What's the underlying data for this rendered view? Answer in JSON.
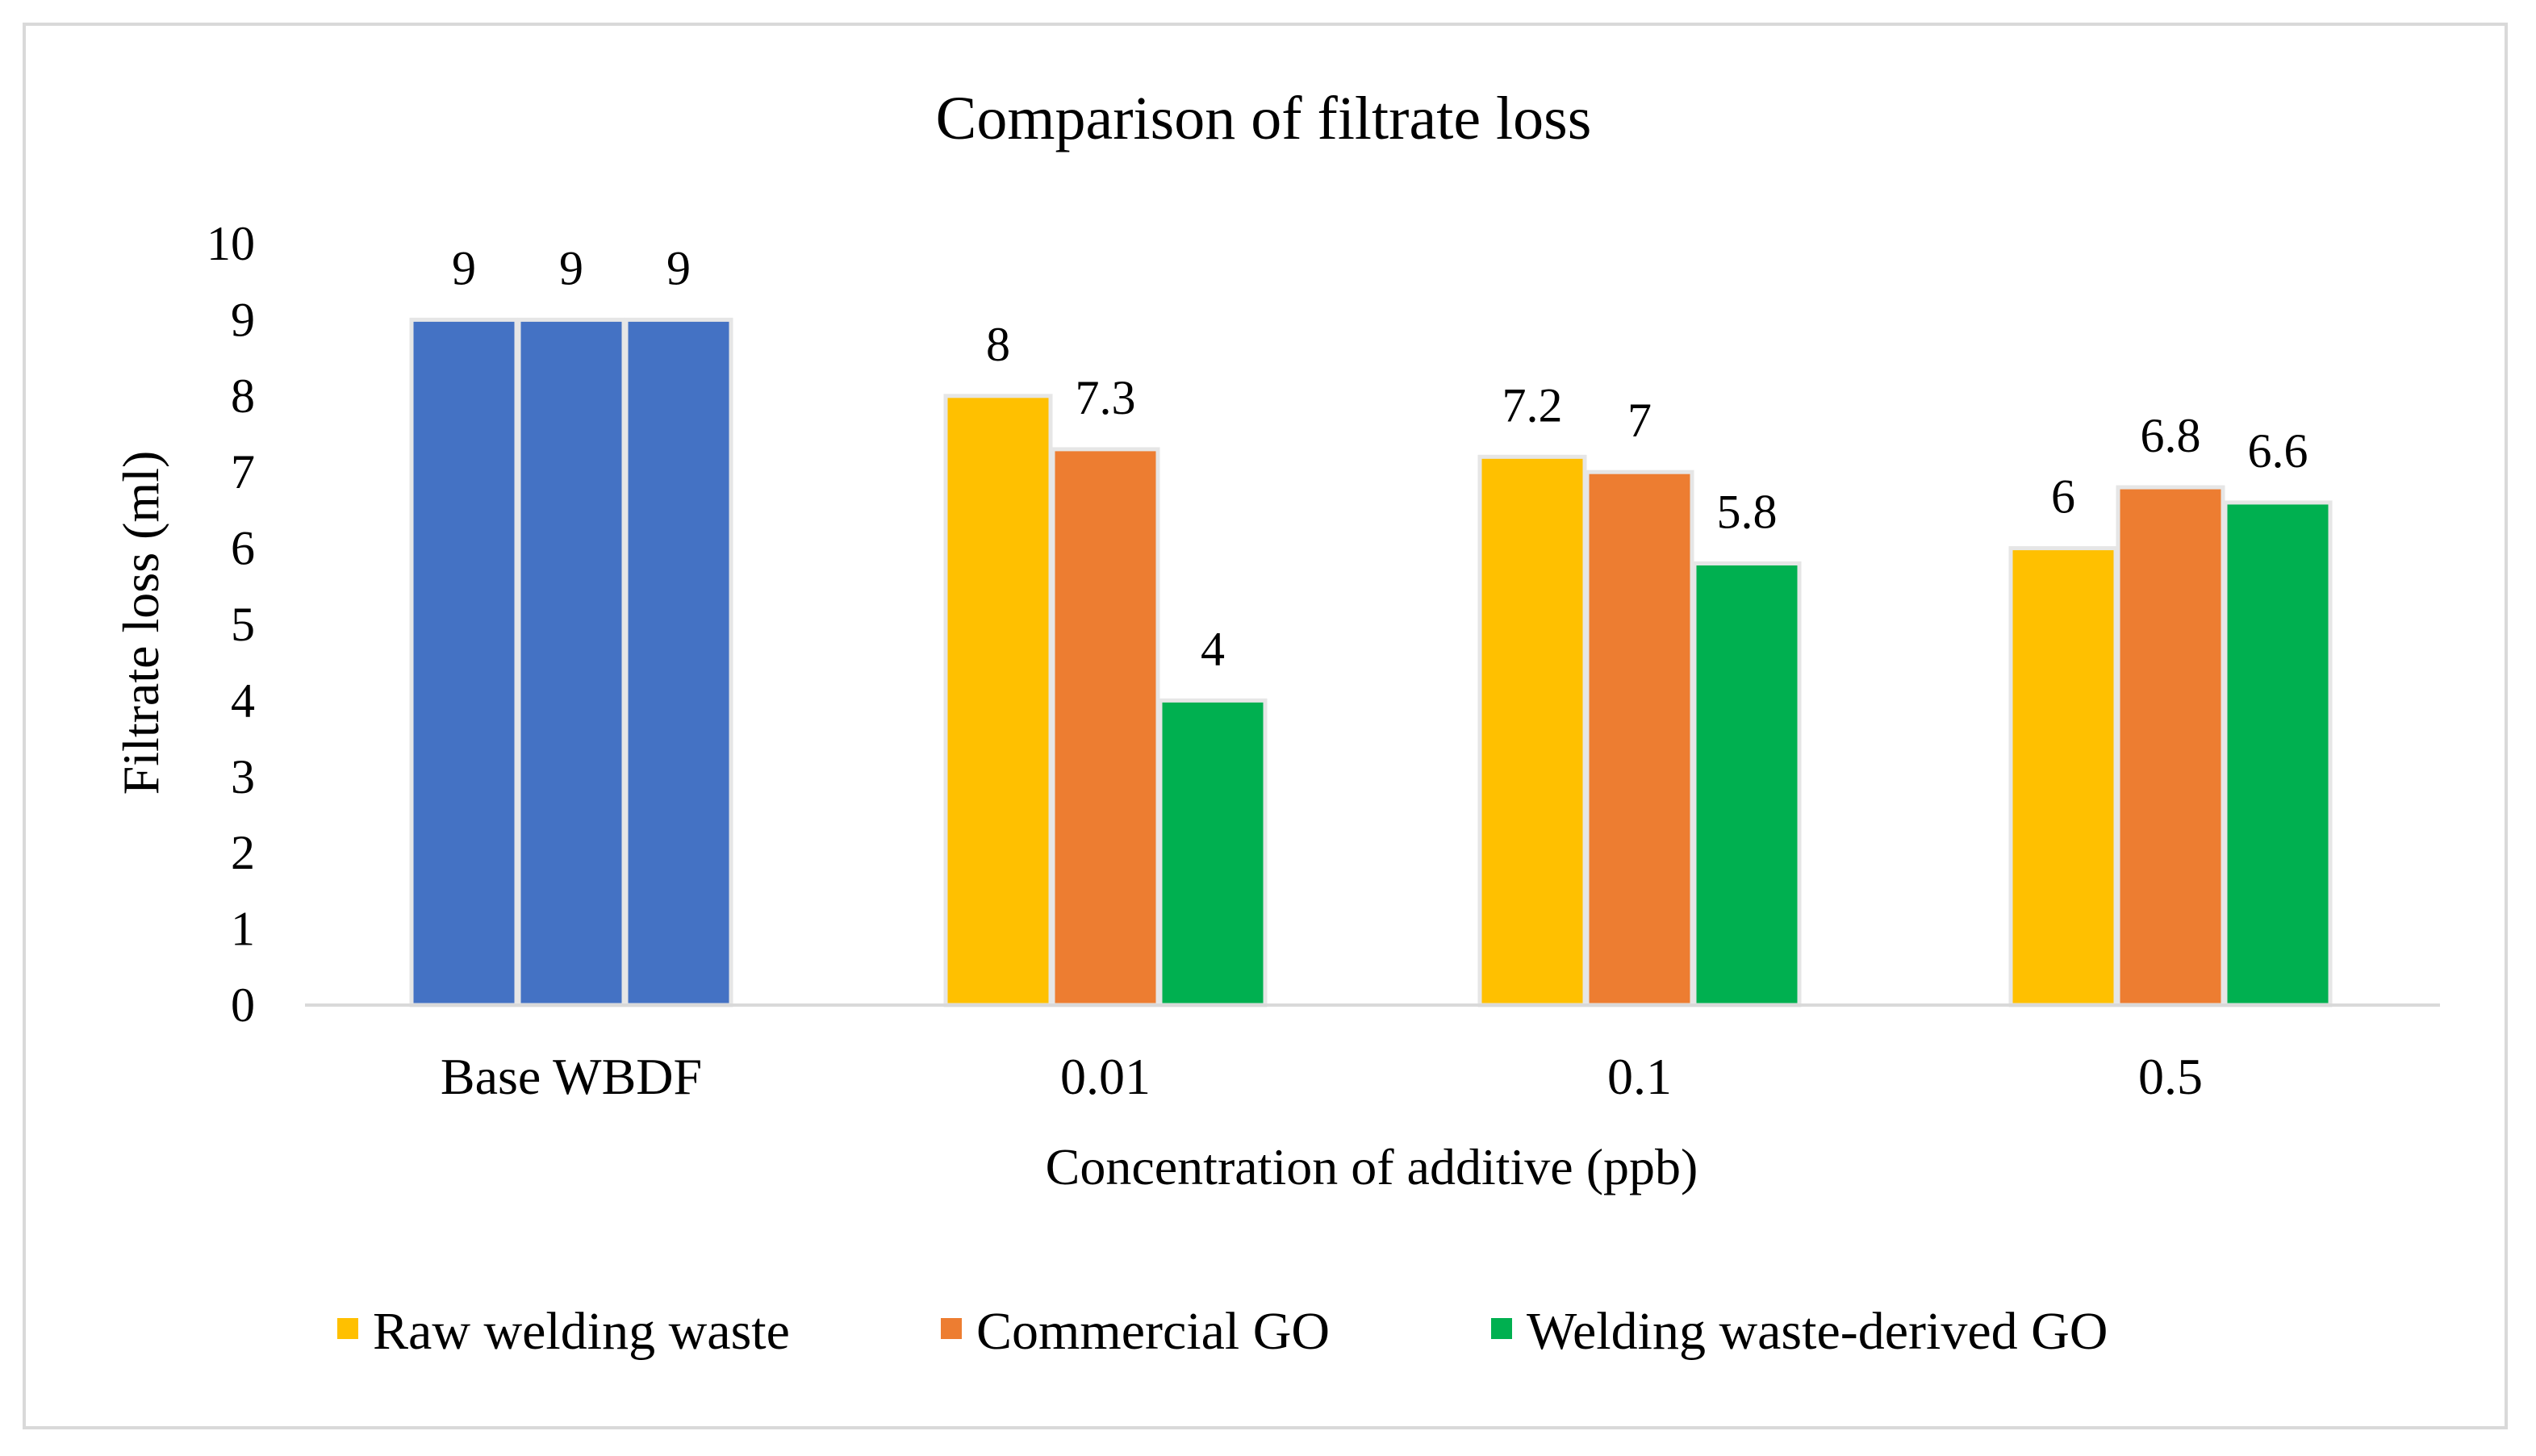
{
  "chart_data": {
    "type": "bar",
    "title": "Comparison of filtrate loss",
    "xlabel": "Concentration of additive (ppb)",
    "ylabel": "Filtrate loss (ml)",
    "ylim": [
      0,
      10
    ],
    "yticks": [
      "0",
      "1",
      "2",
      "3",
      "4",
      "5",
      "6",
      "7",
      "8",
      "9",
      "10"
    ],
    "categories": [
      "Base WBDF",
      "0.01",
      "0.1",
      "0.5"
    ],
    "series": [
      {
        "name": "Raw welding waste",
        "color": "#FFC000",
        "values": [
          9,
          8,
          7.2,
          6
        ],
        "labels": [
          "9",
          "8",
          "7.2",
          "6"
        ]
      },
      {
        "name": "Commercial GO",
        "color": "#ED7D31",
        "values": [
          9,
          7.3,
          7,
          6.8
        ],
        "labels": [
          "9",
          "7.3",
          "7",
          "6.8"
        ]
      },
      {
        "name": "Welding waste-derived GO",
        "color": "#00B050",
        "values": [
          9,
          4,
          5.8,
          6.6
        ],
        "labels": [
          "9",
          "4",
          "5.8",
          "6.6"
        ]
      }
    ],
    "base_color": "#4472C4",
    "grid": false,
    "legend_position": "bottom"
  }
}
